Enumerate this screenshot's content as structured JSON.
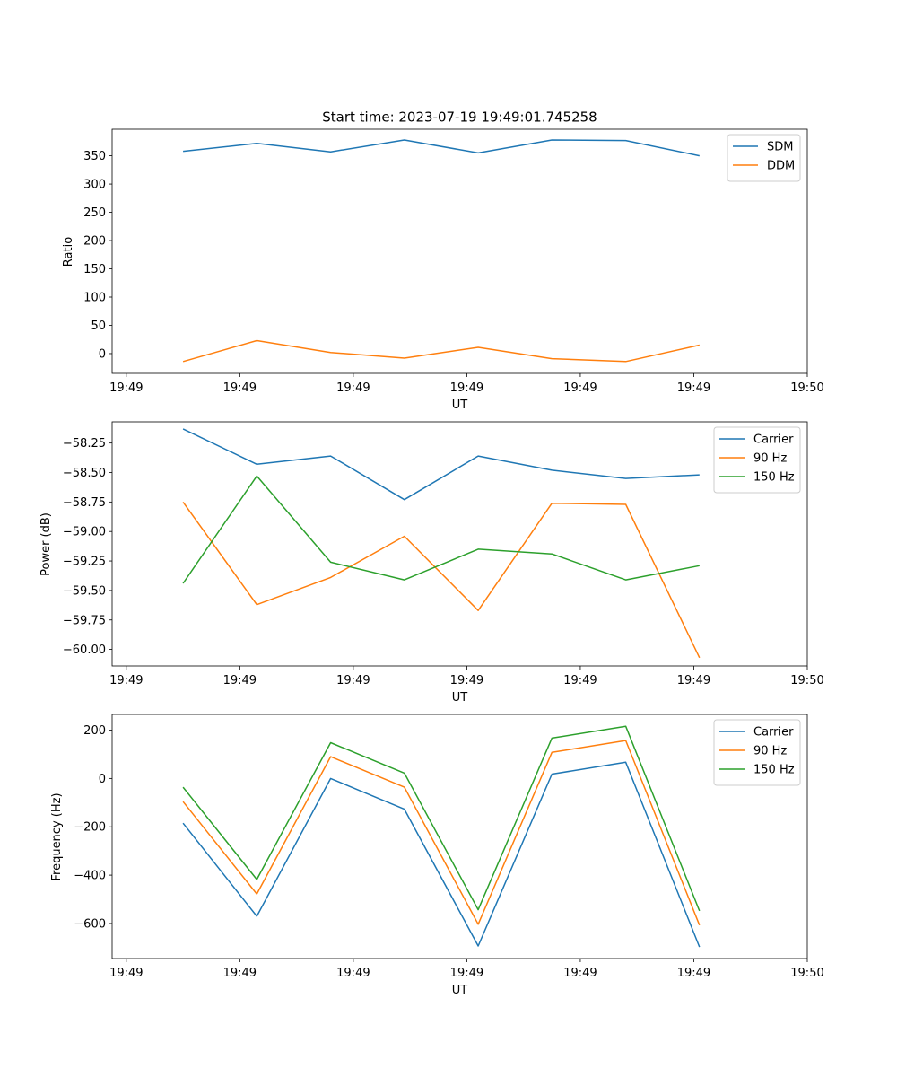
{
  "chart_data": [
    {
      "type": "line",
      "title": "Start time: 2023-07-19 19:49:01.745258",
      "xlabel": "UT",
      "ylabel": "Ratio",
      "x_tick_labels": [
        "19:49",
        "19:49",
        "19:49",
        "19:49",
        "19:49",
        "19:49",
        "19:50"
      ],
      "x": [
        0.5,
        1.15,
        1.8,
        2.45,
        3.1,
        3.75,
        4.4,
        5.05
      ],
      "xlim": [
        -0.125,
        6.0
      ],
      "ylim": [
        -35,
        397
      ],
      "yticks": [
        0,
        50,
        100,
        150,
        200,
        250,
        300,
        350
      ],
      "legend_position": "upper right",
      "series": [
        {
          "name": "SDM",
          "color": "#1f77b4",
          "values": [
            358,
            372,
            357,
            378,
            355,
            378,
            377,
            350
          ]
        },
        {
          "name": "DDM",
          "color": "#ff7f0e",
          "values": [
            -14,
            23,
            2,
            -8,
            11,
            -9,
            -14,
            15
          ]
        }
      ]
    },
    {
      "type": "line",
      "title": "",
      "xlabel": "UT",
      "ylabel": "Power (dB)",
      "x_tick_labels": [
        "19:49",
        "19:49",
        "19:49",
        "19:49",
        "19:49",
        "19:49",
        "19:50"
      ],
      "x": [
        0.5,
        1.15,
        1.8,
        2.45,
        3.1,
        3.75,
        4.4,
        5.05
      ],
      "xlim": [
        -0.125,
        6.0
      ],
      "ylim": [
        -60.14,
        -58.07
      ],
      "yticks": [
        -60.0,
        -59.75,
        -59.5,
        -59.25,
        -59.0,
        -58.75,
        -58.5,
        -58.25
      ],
      "ytick_labels": [
        "−60.00",
        "−59.75",
        "−59.50",
        "−59.25",
        "−59.00",
        "−58.75",
        "−58.50",
        "−58.25"
      ],
      "legend_position": "upper right",
      "series": [
        {
          "name": "Carrier",
          "color": "#1f77b4",
          "values": [
            -58.13,
            -58.43,
            -58.36,
            -58.73,
            -58.36,
            -58.48,
            -58.55,
            -58.52
          ]
        },
        {
          "name": "90 Hz",
          "color": "#ff7f0e",
          "values": [
            -58.75,
            -59.62,
            -59.39,
            -59.04,
            -59.67,
            -58.76,
            -58.77,
            -60.07
          ]
        },
        {
          "name": "150 Hz",
          "color": "#2ca02c",
          "values": [
            -59.44,
            -58.53,
            -59.26,
            -59.41,
            -59.15,
            -59.19,
            -59.41,
            -59.29
          ]
        }
      ]
    },
    {
      "type": "line",
      "title": "",
      "xlabel": "UT",
      "ylabel": "Frequency (Hz)",
      "x_tick_labels": [
        "19:49",
        "19:49",
        "19:49",
        "19:49",
        "19:49",
        "19:49",
        "19:50"
      ],
      "x": [
        0.5,
        1.15,
        1.8,
        2.45,
        3.1,
        3.75,
        4.4,
        5.05
      ],
      "xlim": [
        -0.125,
        6.0
      ],
      "ylim": [
        -745,
        265
      ],
      "yticks": [
        -600,
        -400,
        -200,
        0,
        200
      ],
      "ytick_labels": [
        "−600",
        "−400",
        "−200",
        "0",
        "200"
      ],
      "legend_position": "upper right",
      "series": [
        {
          "name": "Carrier",
          "color": "#1f77b4",
          "values": [
            -185,
            -570,
            0,
            -127,
            -693,
            18,
            67,
            -697
          ]
        },
        {
          "name": "90 Hz",
          "color": "#ff7f0e",
          "values": [
            -96,
            -478,
            90,
            -36,
            -603,
            108,
            157,
            -607
          ]
        },
        {
          "name": "150 Hz",
          "color": "#2ca02c",
          "values": [
            -36,
            -418,
            148,
            22,
            -543,
            167,
            216,
            -548
          ]
        }
      ]
    }
  ]
}
